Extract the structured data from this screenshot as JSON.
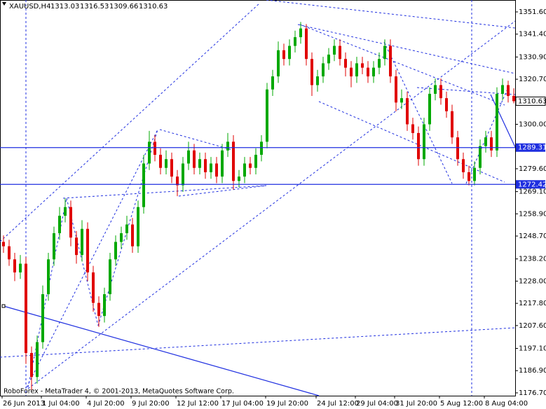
{
  "chart_data": {
    "type": "candlestick",
    "title": "XAUUSD,H4",
    "footer": "RoboForex - MetaTrader 4, © 2001-2013, MetaQuotes Software Corp.",
    "up_color": "#00a800",
    "down_color": "#e00000",
    "categories": [
      "26 Jun 2013",
      null,
      null,
      null,
      null,
      null,
      null,
      "1 Jul 04:00",
      null,
      null,
      null,
      null,
      null,
      null,
      null,
      "4 Jul 20:00",
      null,
      null,
      null,
      null,
      null,
      null,
      null,
      "9 Jul 20:00",
      null,
      null,
      null,
      null,
      null,
      null,
      null,
      "12 Jul 12:00",
      null,
      null,
      null,
      null,
      null,
      null,
      null,
      "17 Jul 04:00",
      null,
      null,
      null,
      null,
      null,
      null,
      null,
      "19 Jul 20:00",
      null,
      null,
      null,
      null,
      null,
      null,
      null,
      null,
      "24 Jul 12:00",
      null,
      null,
      null,
      null,
      null,
      null,
      "29 Jul 04:00",
      null,
      null,
      null,
      null,
      null,
      null,
      "31 Jul 20:00",
      null,
      null,
      null,
      null,
      null,
      null,
      null,
      "5 Aug 12:00",
      null,
      null,
      null,
      null,
      null,
      null,
      null,
      "8 Aug 04:00",
      null,
      null,
      null,
      null,
      null
    ],
    "ohlc": [
      [
        1246,
        1249,
        1241,
        1244
      ],
      [
        1244,
        1247,
        1235,
        1238
      ],
      [
        1238,
        1241,
        1228,
        1232
      ],
      [
        1232,
        1240,
        1229,
        1236
      ],
      [
        1236,
        1239,
        1190,
        1195
      ],
      [
        1195,
        1198,
        1178,
        1184
      ],
      [
        1184,
        1203,
        1181,
        1200
      ],
      [
        1200,
        1226,
        1197,
        1222
      ],
      [
        1222,
        1241,
        1219,
        1238
      ],
      [
        1238,
        1253,
        1235,
        1250
      ],
      [
        1250,
        1262,
        1247,
        1258
      ],
      [
        1258,
        1266,
        1255,
        1262
      ],
      [
        1262,
        1265,
        1244,
        1248
      ],
      [
        1248,
        1251,
        1236,
        1240
      ],
      [
        1240,
        1256,
        1237,
        1252
      ],
      [
        1252,
        1255,
        1228,
        1232
      ],
      [
        1232,
        1235,
        1214,
        1218
      ],
      [
        1218,
        1221,
        1207,
        1212
      ],
      [
        1212,
        1225,
        1209,
        1222
      ],
      [
        1222,
        1241,
        1219,
        1238
      ],
      [
        1238,
        1249,
        1235,
        1246
      ],
      [
        1246,
        1253,
        1243,
        1250
      ],
      [
        1250,
        1258,
        1247,
        1254
      ],
      [
        1254,
        1257,
        1241,
        1244
      ],
      [
        1244,
        1265,
        1241,
        1262
      ],
      [
        1262,
        1286,
        1259,
        1282
      ],
      [
        1282,
        1297,
        1279,
        1292
      ],
      [
        1292,
        1295,
        1283,
        1286
      ],
      [
        1286,
        1289,
        1277,
        1280
      ],
      [
        1280,
        1288,
        1277,
        1284
      ],
      [
        1284,
        1287,
        1273,
        1276
      ],
      [
        1276,
        1279,
        1267,
        1272
      ],
      [
        1272,
        1285,
        1269,
        1282
      ],
      [
        1282,
        1292,
        1279,
        1288
      ],
      [
        1288,
        1291,
        1277,
        1280
      ],
      [
        1280,
        1287,
        1277,
        1284
      ],
      [
        1284,
        1287,
        1275,
        1278
      ],
      [
        1278,
        1285,
        1275,
        1282
      ],
      [
        1282,
        1285,
        1273,
        1276
      ],
      [
        1276,
        1291,
        1273,
        1288
      ],
      [
        1288,
        1296,
        1285,
        1292
      ],
      [
        1292,
        1295,
        1270,
        1274
      ],
      [
        1274,
        1279,
        1271,
        1276
      ],
      [
        1276,
        1285,
        1273,
        1282
      ],
      [
        1282,
        1285,
        1277,
        1280
      ],
      [
        1280,
        1289,
        1277,
        1286
      ],
      [
        1286,
        1295,
        1283,
        1292
      ],
      [
        1292,
        1319,
        1289,
        1316
      ],
      [
        1316,
        1325,
        1313,
        1322
      ],
      [
        1322,
        1338,
        1319,
        1334
      ],
      [
        1334,
        1337,
        1327,
        1330
      ],
      [
        1330,
        1339,
        1327,
        1336
      ],
      [
        1336,
        1343,
        1333,
        1340
      ],
      [
        1340,
        1347,
        1337,
        1344
      ],
      [
        1344,
        1346,
        1327,
        1330
      ],
      [
        1330,
        1333,
        1313,
        1318
      ],
      [
        1318,
        1325,
        1315,
        1322
      ],
      [
        1322,
        1331,
        1319,
        1328
      ],
      [
        1328,
        1335,
        1325,
        1332
      ],
      [
        1332,
        1339,
        1329,
        1336
      ],
      [
        1336,
        1339,
        1327,
        1330
      ],
      [
        1330,
        1333,
        1322,
        1326
      ],
      [
        1326,
        1329,
        1317,
        1322
      ],
      [
        1322,
        1331,
        1319,
        1328
      ],
      [
        1328,
        1331,
        1323,
        1326
      ],
      [
        1326,
        1329,
        1319,
        1322
      ],
      [
        1322,
        1329,
        1319,
        1326
      ],
      [
        1326,
        1333,
        1323,
        1330
      ],
      [
        1330,
        1339,
        1327,
        1336
      ],
      [
        1336,
        1339,
        1319,
        1322
      ],
      [
        1322,
        1325,
        1306,
        1310
      ],
      [
        1310,
        1316,
        1307,
        1312
      ],
      [
        1312,
        1315,
        1297,
        1300
      ],
      [
        1300,
        1303,
        1293,
        1296
      ],
      [
        1296,
        1299,
        1281,
        1284
      ],
      [
        1284,
        1303,
        1281,
        1300
      ],
      [
        1300,
        1317,
        1297,
        1314
      ],
      [
        1314,
        1321,
        1311,
        1318
      ],
      [
        1318,
        1321,
        1309,
        1312
      ],
      [
        1312,
        1315,
        1303,
        1306
      ],
      [
        1306,
        1309,
        1291,
        1294
      ],
      [
        1294,
        1297,
        1281,
        1284
      ],
      [
        1284,
        1287,
        1275,
        1278
      ],
      [
        1278,
        1281,
        1272,
        1274
      ],
      [
        1274,
        1283,
        1272,
        1280
      ],
      [
        1280,
        1293,
        1277,
        1290
      ],
      [
        1290,
        1297,
        1287,
        1294
      ],
      [
        1294,
        1297,
        1285,
        1288
      ],
      [
        1288,
        1317,
        1285,
        1314
      ],
      [
        1314,
        1321,
        1311,
        1318
      ],
      [
        1318,
        1320,
        1310,
        1313
      ],
      [
        1313.03,
        1316.53,
        1309.66,
        1310.63
      ]
    ],
    "ylim": [
      1175.4,
      1357.07
    ],
    "yticks": [
      {
        "value": 1351.6,
        "label": "1351.60"
      },
      {
        "value": 1341.4,
        "label": "1341.40"
      },
      {
        "value": 1330.9,
        "label": "1330.90"
      },
      {
        "value": 1320.7,
        "label": "1320.70"
      },
      {
        "value": 1300,
        "label": "1300.00"
      },
      {
        "value": 1279.6,
        "label": "1279.60"
      },
      {
        "value": 1269.1,
        "label": "1269.10"
      },
      {
        "value": 1258.9,
        "label": "1258.90"
      },
      {
        "value": 1248.7,
        "label": "1248.70"
      },
      {
        "value": 1238.2,
        "label": "1238.20"
      },
      {
        "value": 1228,
        "label": "1228.00"
      },
      {
        "value": 1217.8,
        "label": "1217.80"
      },
      {
        "value": 1207.6,
        "label": "1207.60"
      },
      {
        "value": 1197.1,
        "label": "1197.10"
      },
      {
        "value": 1186.9,
        "label": "1186.90"
      },
      {
        "value": 1176.7,
        "label": "1176.70"
      }
    ],
    "hlines": [
      1289.31,
      1272.42
    ],
    "last_price": 1310.63
  }
}
